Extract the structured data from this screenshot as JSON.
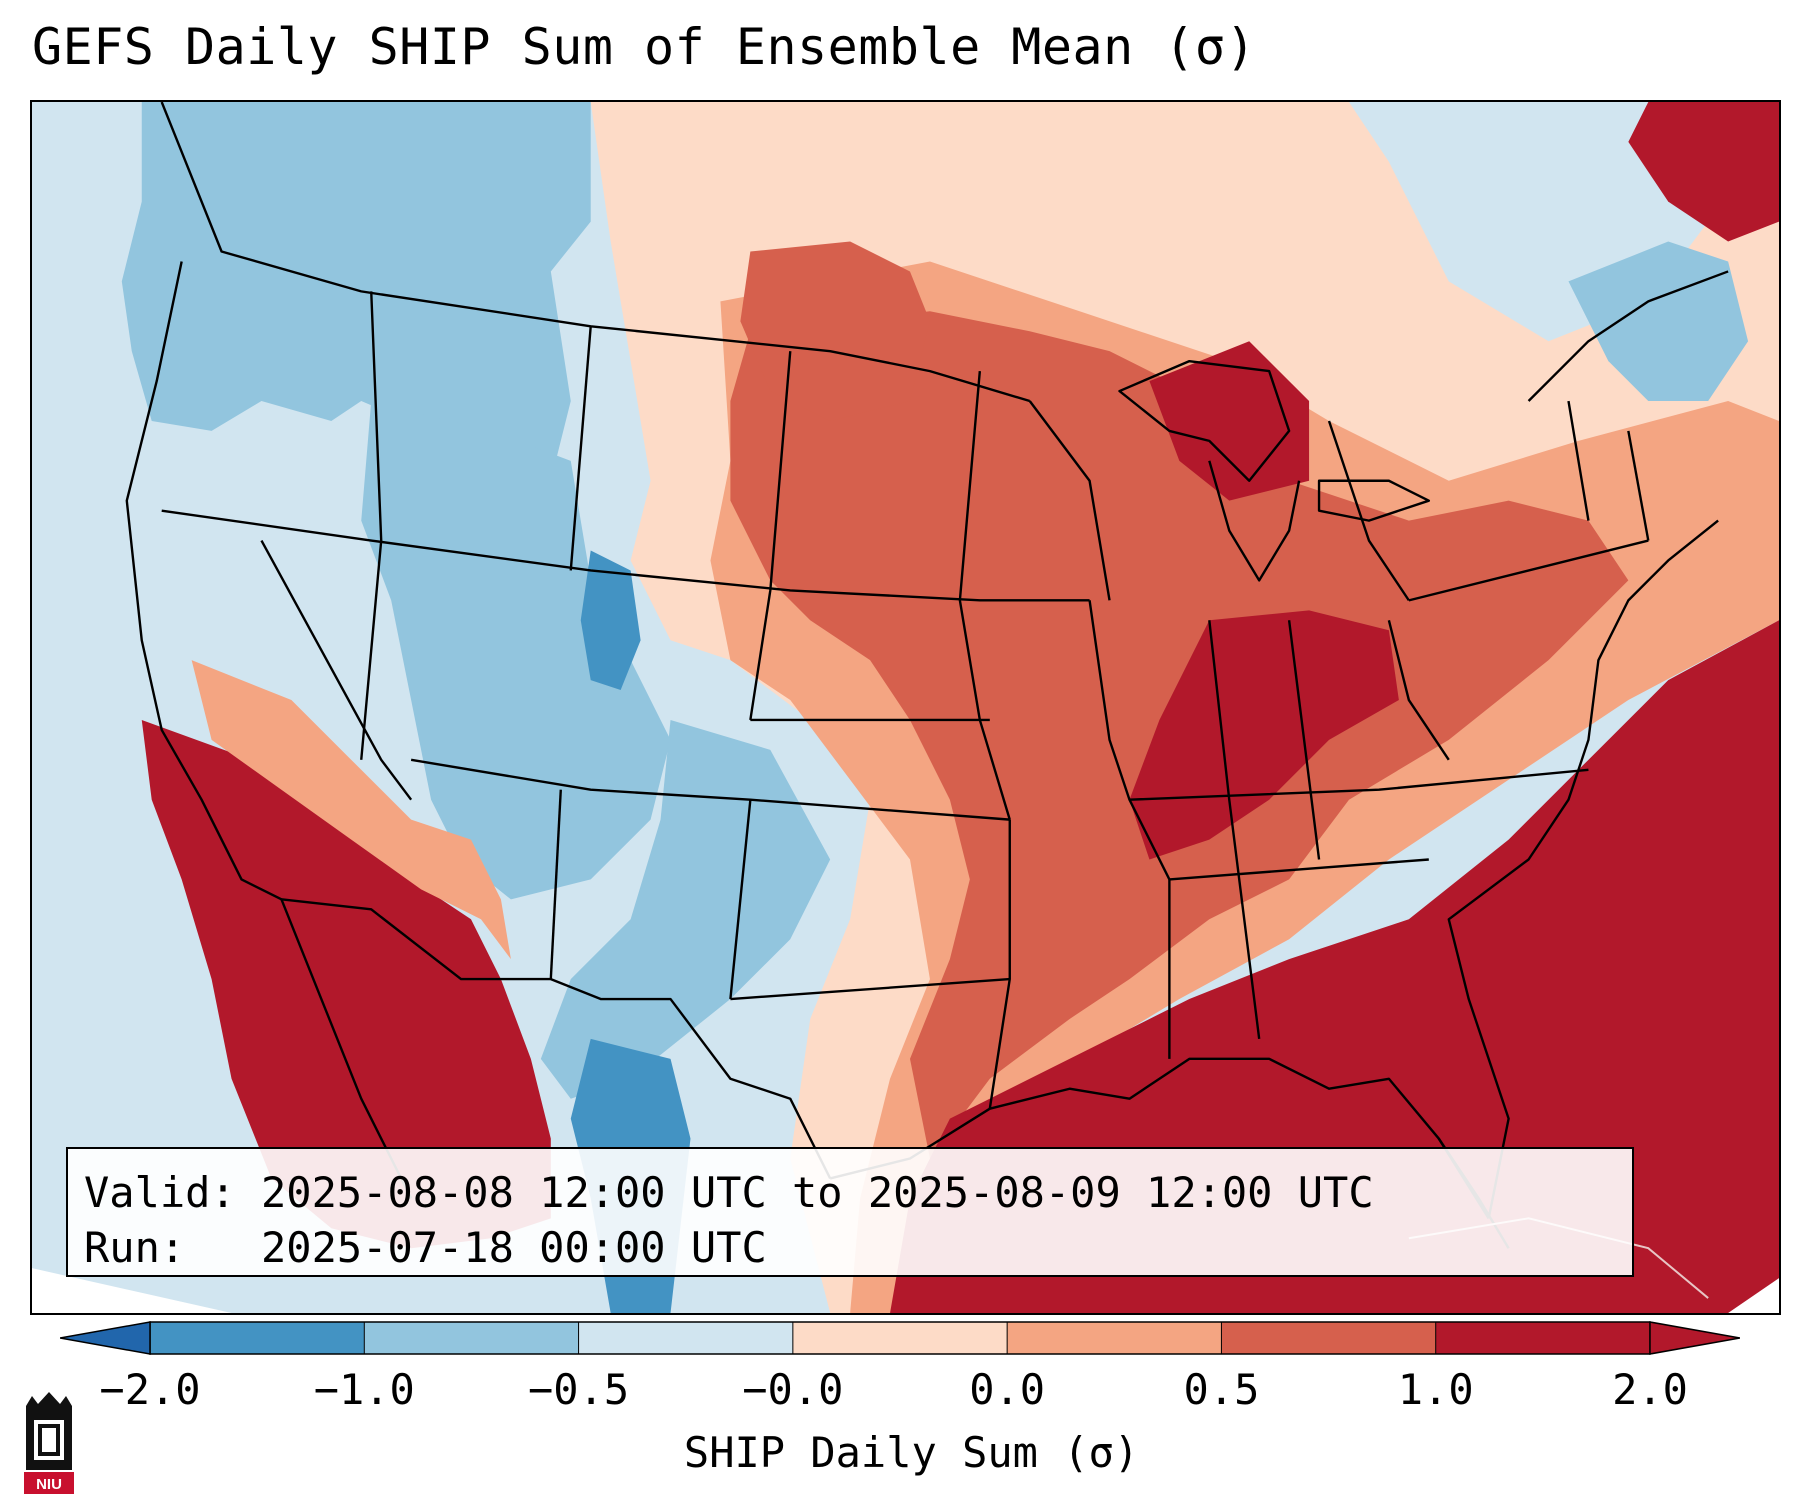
{
  "title": "GEFS Daily SHIP Sum of Ensemble Mean (σ)",
  "info": {
    "valid_label": "Valid:",
    "valid_value": "2025-08-08 12:00 UTC to 2025-08-09 12:00 UTC",
    "run_label": "Run:",
    "run_value": "2025-07-18 00:00 UTC"
  },
  "colorbar": {
    "label": "SHIP Daily Sum (σ)",
    "ticks": [
      "−2.0",
      "−1.0",
      "−0.5",
      "−0.0",
      "0.0",
      "0.5",
      "1.0",
      "2.0"
    ],
    "colors": [
      "#2166ac",
      "#4393c3",
      "#92c5de",
      "#d1e5f0",
      "#fddbc7",
      "#f4a582",
      "#d6604d",
      "#b2182b"
    ],
    "extend": "both"
  },
  "logo": {
    "text": "NIU"
  },
  "map": {
    "colors": {
      "strong_neg": "#4393c3",
      "neg": "#92c5de",
      "weak_neg": "#d1e5f0",
      "weak_pos": "#fddbc7",
      "pos": "#f4a582",
      "strong_pos": "#d6604d",
      "max_pos": "#b2182b",
      "boundary": "#000000"
    }
  }
}
